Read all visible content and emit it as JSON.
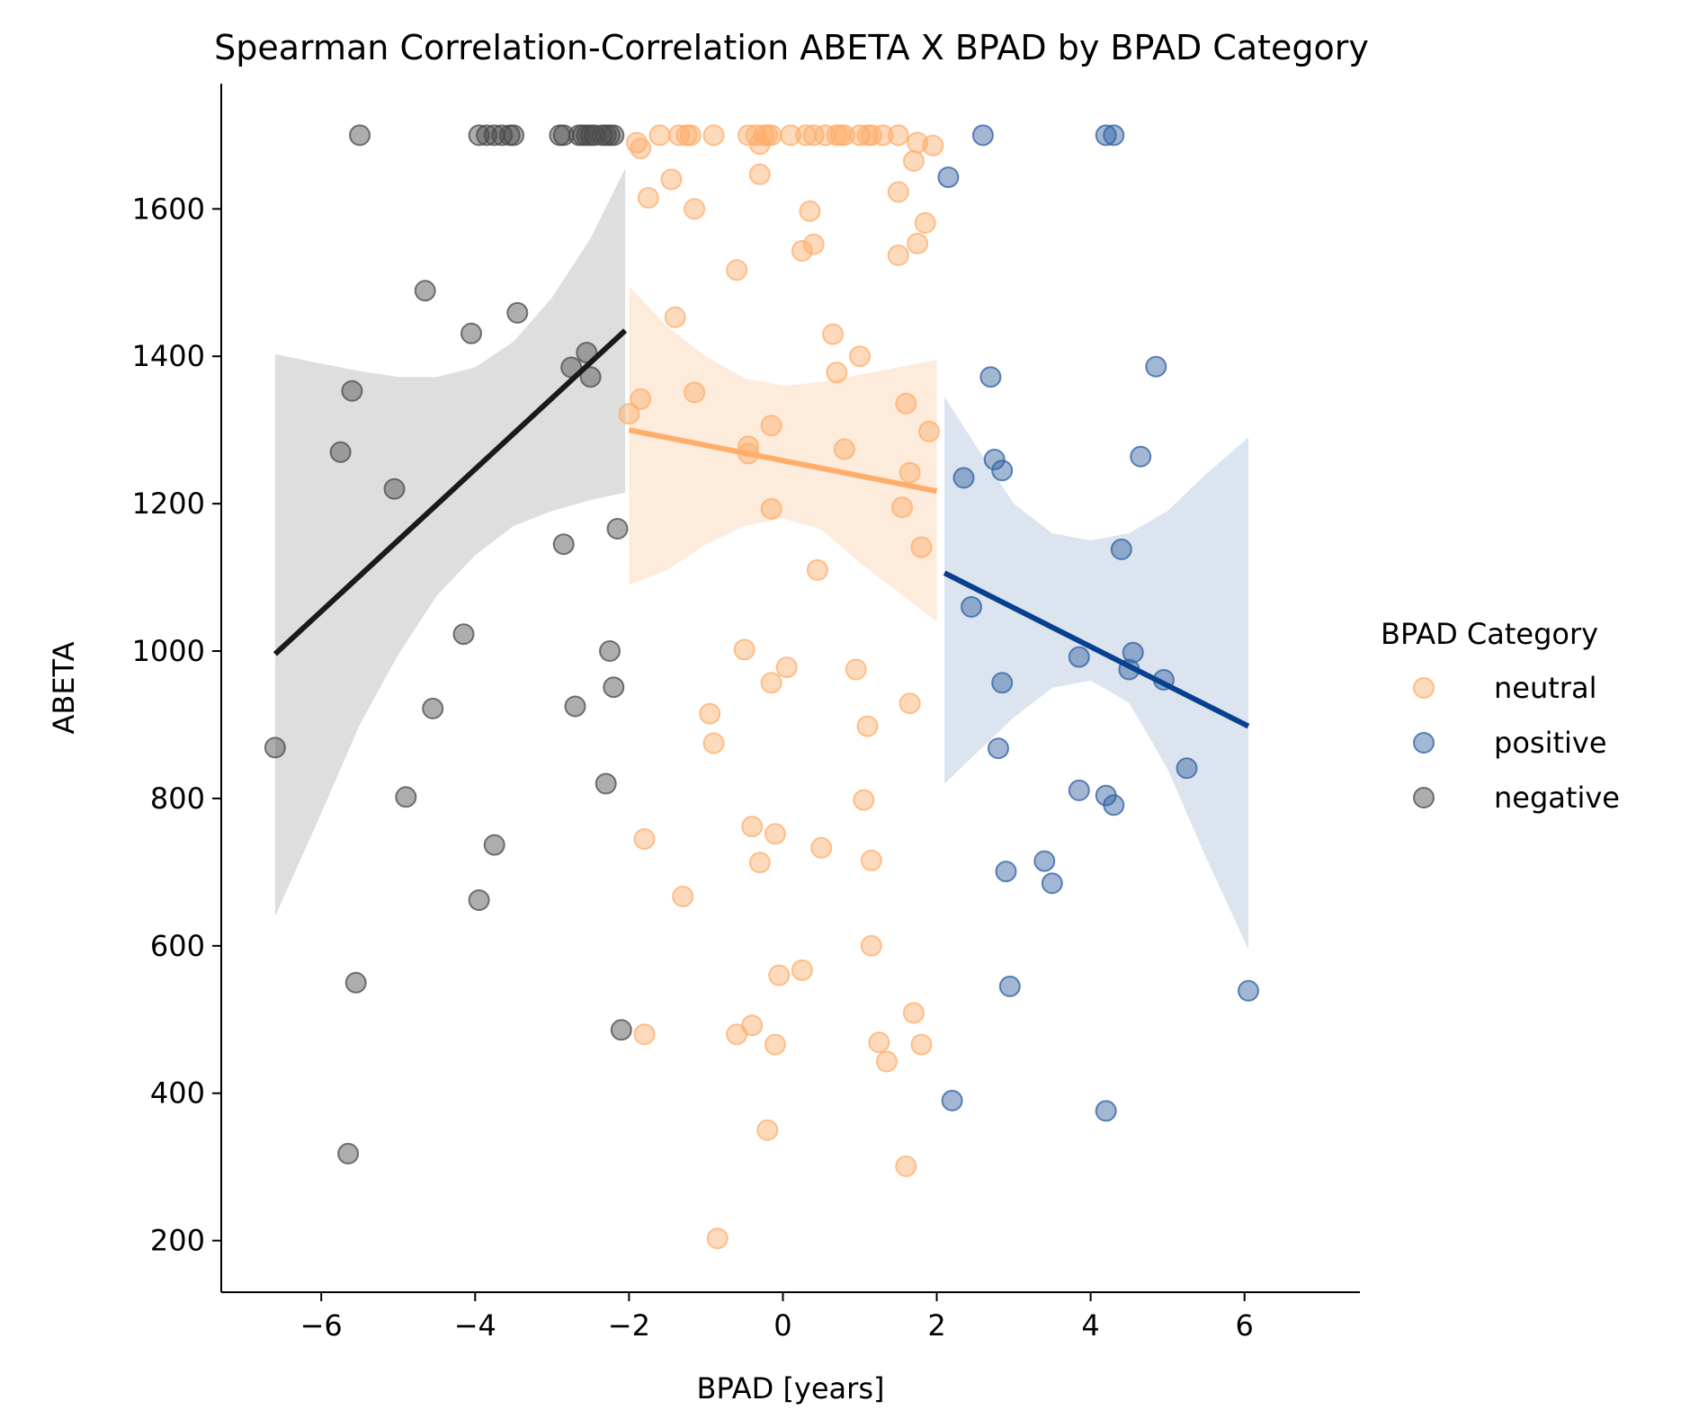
{
  "chart_data": {
    "type": "scatter",
    "title": "Spearman Correlation-Correlation ABETA X BPAD by BPAD Category",
    "xlabel": "BPAD [years]",
    "ylabel": "ABETA",
    "xlim": [
      -7.3,
      7.5
    ],
    "ylim": [
      130,
      1770
    ],
    "xticks": [
      -6,
      -4,
      -2,
      0,
      2,
      4,
      6
    ],
    "yticks": [
      200,
      400,
      600,
      800,
      1000,
      1200,
      1400,
      1600
    ],
    "grid": false,
    "legend": {
      "title": "BPAD Category",
      "placement": "right"
    },
    "series": [
      {
        "name": "neutral",
        "color": "#fdae6b",
        "fit": {
          "x": [
            -2.0,
            2.0
          ],
          "y": [
            1300,
            1217
          ]
        },
        "band": {
          "x": [
            -2.0,
            -1.5,
            -1.0,
            -0.5,
            0.0,
            0.5,
            1.0,
            1.5,
            2.0
          ],
          "upper": [
            1495,
            1440,
            1400,
            1370,
            1360,
            1365,
            1375,
            1385,
            1395
          ],
          "lower": [
            1090,
            1110,
            1145,
            1170,
            1180,
            1165,
            1120,
            1080,
            1040
          ]
        },
        "points": [
          [
            -2.0,
            1322
          ],
          [
            -1.85,
            1342
          ],
          [
            -1.8,
            745
          ],
          [
            -1.8,
            480
          ],
          [
            -1.75,
            1615
          ],
          [
            -1.45,
            1640
          ],
          [
            -1.4,
            1453
          ],
          [
            -1.3,
            667
          ],
          [
            -1.15,
            1600
          ],
          [
            -1.15,
            1351
          ],
          [
            -0.95,
            915
          ],
          [
            -0.9,
            875
          ],
          [
            -0.85,
            203
          ],
          [
            -0.6,
            1517
          ],
          [
            -0.6,
            480
          ],
          [
            -0.5,
            1002
          ],
          [
            -0.45,
            1278
          ],
          [
            -0.45,
            1268
          ],
          [
            -0.4,
            762
          ],
          [
            -0.4,
            492
          ],
          [
            -0.3,
            1647
          ],
          [
            -0.3,
            713
          ],
          [
            -0.2,
            350
          ],
          [
            -0.15,
            957
          ],
          [
            -0.15,
            1193
          ],
          [
            -0.15,
            1306
          ],
          [
            -0.1,
            752
          ],
          [
            -0.1,
            466
          ],
          [
            -0.05,
            560
          ],
          [
            0.05,
            978
          ],
          [
            0.25,
            1543
          ],
          [
            0.25,
            567
          ],
          [
            0.35,
            1597
          ],
          [
            0.4,
            1552
          ],
          [
            0.45,
            1110
          ],
          [
            0.5,
            733
          ],
          [
            0.65,
            1430
          ],
          [
            0.7,
            1378
          ],
          [
            0.8,
            1274
          ],
          [
            0.95,
            975
          ],
          [
            1.0,
            1400
          ],
          [
            1.05,
            798
          ],
          [
            1.1,
            898
          ],
          [
            1.15,
            716
          ],
          [
            1.15,
            600
          ],
          [
            1.25,
            469
          ],
          [
            1.35,
            443
          ],
          [
            1.5,
            1623
          ],
          [
            1.5,
            1537
          ],
          [
            1.55,
            1195
          ],
          [
            1.6,
            1336
          ],
          [
            1.6,
            301
          ],
          [
            1.65,
            1242
          ],
          [
            1.65,
            929
          ],
          [
            1.7,
            1665
          ],
          [
            1.7,
            509
          ],
          [
            1.75,
            1553
          ],
          [
            1.8,
            1141
          ],
          [
            1.8,
            466
          ],
          [
            1.85,
            1581
          ],
          [
            1.9,
            1298
          ],
          [
            1.95,
            1686
          ],
          [
            1.75,
            1690
          ],
          [
            -1.9,
            1690
          ],
          [
            -1.85,
            1682
          ],
          [
            -1.6,
            1700
          ],
          [
            -1.35,
            1700
          ],
          [
            -1.25,
            1700
          ],
          [
            -1.2,
            1700
          ],
          [
            -0.9,
            1700
          ],
          [
            -0.45,
            1700
          ],
          [
            -0.35,
            1700
          ],
          [
            -0.25,
            1700
          ],
          [
            -0.2,
            1700
          ],
          [
            -0.15,
            1700
          ],
          [
            0.1,
            1700
          ],
          [
            0.3,
            1700
          ],
          [
            0.4,
            1700
          ],
          [
            0.55,
            1700
          ],
          [
            0.7,
            1700
          ],
          [
            0.75,
            1700
          ],
          [
            0.8,
            1700
          ],
          [
            1.0,
            1700
          ],
          [
            1.1,
            1700
          ],
          [
            1.15,
            1700
          ],
          [
            1.3,
            1700
          ],
          [
            1.5,
            1700
          ],
          [
            -0.3,
            1688
          ]
        ]
      },
      {
        "name": "positive",
        "color": "#2f5fa0",
        "fit": {
          "x": [
            2.1,
            6.05
          ],
          "y": [
            1106,
            898
          ]
        },
        "band": {
          "x": [
            2.1,
            2.5,
            3.0,
            3.5,
            4.0,
            4.5,
            5.0,
            5.5,
            6.05
          ],
          "upper": [
            1345,
            1280,
            1200,
            1160,
            1150,
            1160,
            1190,
            1240,
            1290
          ],
          "lower": [
            820,
            860,
            910,
            950,
            960,
            930,
            840,
            720,
            595
          ]
        },
        "points": [
          [
            2.15,
            1643
          ],
          [
            2.2,
            390
          ],
          [
            2.35,
            1235
          ],
          [
            2.45,
            1060
          ],
          [
            2.6,
            1700
          ],
          [
            2.7,
            1372
          ],
          [
            2.75,
            1260
          ],
          [
            2.8,
            868
          ],
          [
            2.85,
            1245
          ],
          [
            2.85,
            957
          ],
          [
            2.9,
            701
          ],
          [
            2.95,
            545
          ],
          [
            3.4,
            715
          ],
          [
            3.5,
            685
          ],
          [
            3.85,
            992
          ],
          [
            3.85,
            811
          ],
          [
            4.2,
            1700
          ],
          [
            4.2,
            804
          ],
          [
            4.2,
            376
          ],
          [
            4.3,
            1700
          ],
          [
            4.3,
            791
          ],
          [
            4.4,
            1138
          ],
          [
            4.5,
            975
          ],
          [
            4.55,
            998
          ],
          [
            4.65,
            1264
          ],
          [
            4.85,
            1386
          ],
          [
            4.95,
            961
          ],
          [
            5.25,
            841
          ],
          [
            6.05,
            539
          ]
        ]
      },
      {
        "name": "negative",
        "color": "#4a4a4a",
        "fit": {
          "x": [
            -6.6,
            -2.05
          ],
          "y": [
            996,
            1435
          ]
        },
        "band": {
          "x": [
            -6.6,
            -6.0,
            -5.5,
            -5.0,
            -4.5,
            -4.0,
            -3.5,
            -3.0,
            -2.5,
            -2.05
          ],
          "upper": [
            1403,
            1390,
            1380,
            1372,
            1372,
            1385,
            1420,
            1480,
            1560,
            1655
          ],
          "lower": [
            640,
            780,
            900,
            995,
            1075,
            1130,
            1170,
            1190,
            1205,
            1215
          ]
        },
        "points": [
          [
            -6.6,
            869
          ],
          [
            -5.75,
            1270
          ],
          [
            -5.65,
            318
          ],
          [
            -5.6,
            1353
          ],
          [
            -5.55,
            550
          ],
          [
            -5.5,
            1700
          ],
          [
            -5.05,
            1220
          ],
          [
            -4.9,
            802
          ],
          [
            -4.65,
            1489
          ],
          [
            -4.55,
            922
          ],
          [
            -4.15,
            1023
          ],
          [
            -4.05,
            1431
          ],
          [
            -3.95,
            662
          ],
          [
            -3.75,
            737
          ],
          [
            -3.45,
            1459
          ],
          [
            -2.85,
            1145
          ],
          [
            -2.75,
            1385
          ],
          [
            -2.7,
            925
          ],
          [
            -2.55,
            1405
          ],
          [
            -2.5,
            1372
          ],
          [
            -2.3,
            820
          ],
          [
            -2.25,
            1000
          ],
          [
            -2.2,
            951
          ],
          [
            -2.15,
            1166
          ],
          [
            -2.1,
            486
          ],
          [
            -3.95,
            1700
          ],
          [
            -3.85,
            1700
          ],
          [
            -3.75,
            1700
          ],
          [
            -3.65,
            1700
          ],
          [
            -3.55,
            1700
          ],
          [
            -3.5,
            1700
          ],
          [
            -2.9,
            1700
          ],
          [
            -2.85,
            1700
          ],
          [
            -2.65,
            1700
          ],
          [
            -2.6,
            1700
          ],
          [
            -2.55,
            1700
          ],
          [
            -2.5,
            1700
          ],
          [
            -2.45,
            1700
          ],
          [
            -2.35,
            1700
          ],
          [
            -2.3,
            1700
          ],
          [
            -2.25,
            1700
          ],
          [
            -2.2,
            1700
          ]
        ]
      }
    ],
    "fit_colors": {
      "neutral": "#fdae6b",
      "positive": "#08408f",
      "negative": "#1a1a1a"
    },
    "band_colors": {
      "neutral": "#fdebdb",
      "positive": "#dbe4ef",
      "negative": "#dedede"
    }
  }
}
